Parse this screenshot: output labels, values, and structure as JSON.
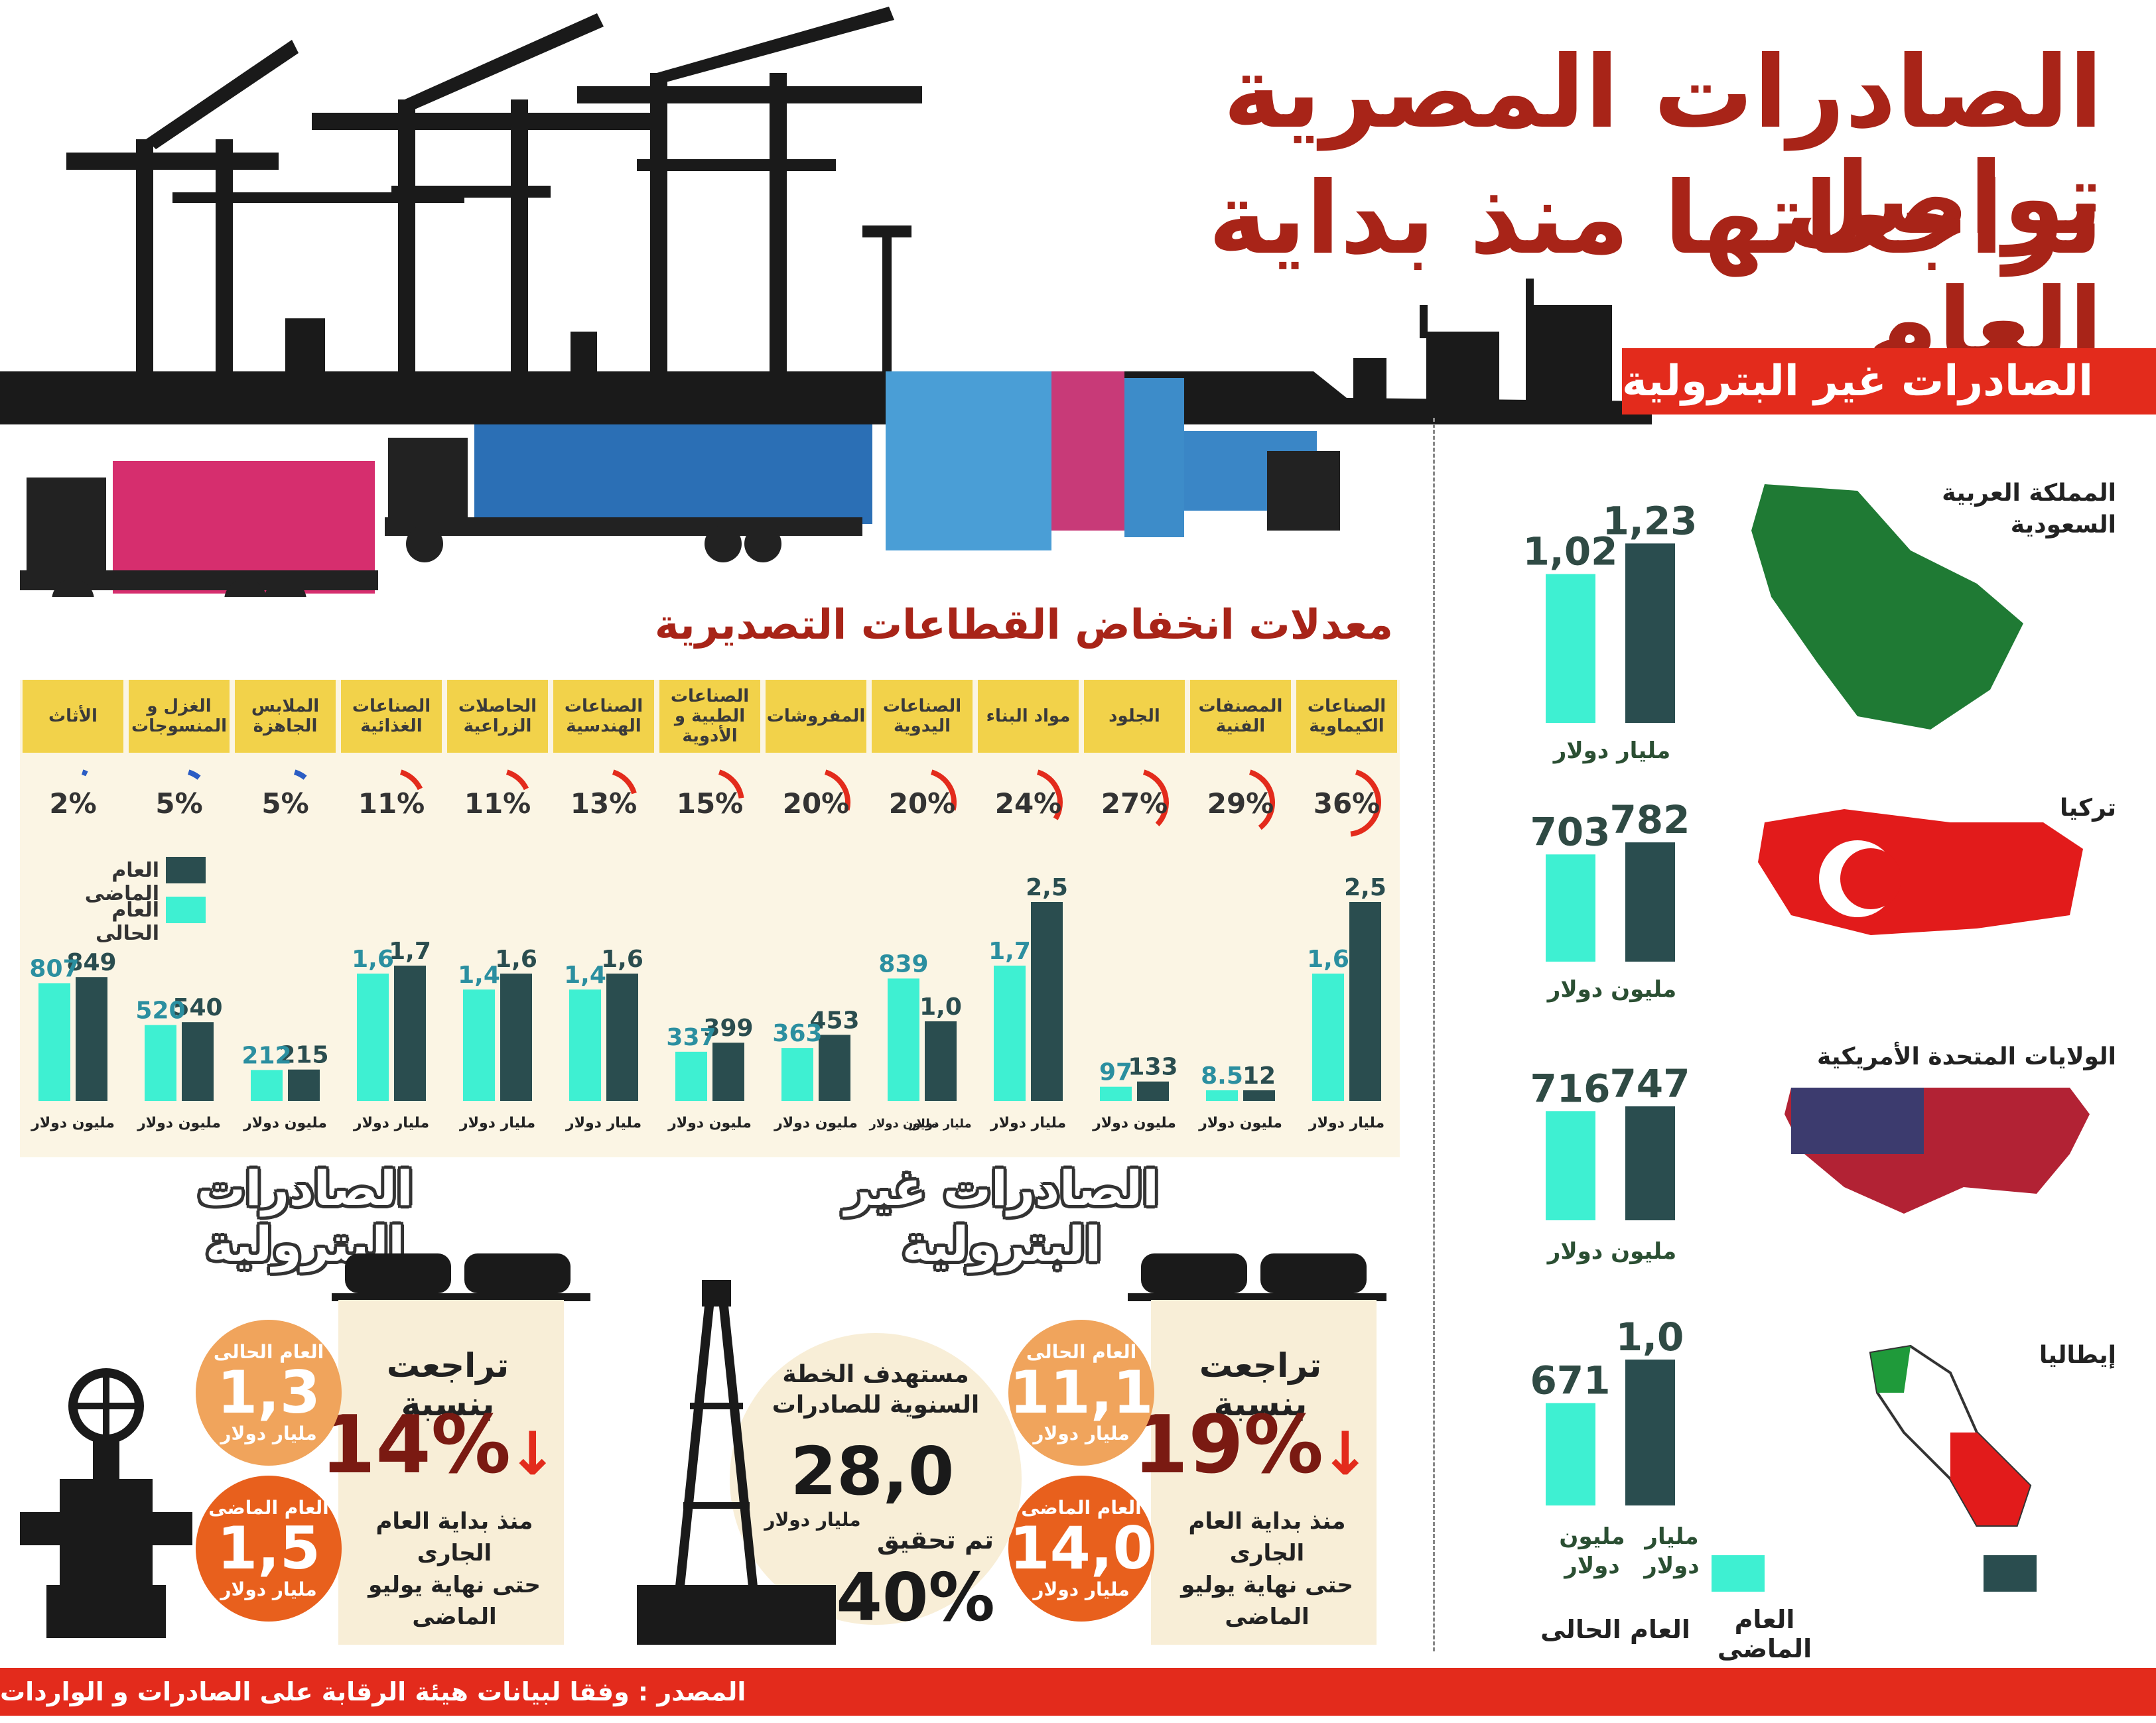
{
  "title": {
    "line1": "الصادرات المصرية تواصل",
    "line2": "تراجعاتها منذ بداية العام"
  },
  "colors": {
    "title": "#a82418",
    "red_band": "#e32b1c",
    "current": "#3ef0d2",
    "previous": "#2a4d4f",
    "header": "#f2d24a",
    "panel": "#fbf5e4"
  },
  "countries_panel": {
    "header": "الصادرات غير البترولية",
    "legend": {
      "previous": "العام الماضى",
      "current": "العام الحالى"
    },
    "items": [
      {
        "name": "المملكة العربية السعودية",
        "current_label": "1,02",
        "previous_label": "1,23",
        "unit": "مليار دولار"
      },
      {
        "name": "تركيا",
        "current_label": "703",
        "previous_label": "782",
        "unit": "مليون دولار"
      },
      {
        "name": "الولايات المتحدة الأمريكية",
        "current_label": "716",
        "previous_label": "747",
        "unit": "مليون دولار"
      },
      {
        "name": "إيطاليا",
        "current_label": "671",
        "previous_label": "1,0",
        "unit_current": "مليون دولار",
        "unit_previous": "مليار دولار"
      }
    ]
  },
  "sectors_panel": {
    "title": "معدلات انخفاض القطاعات التصديرية",
    "legend": {
      "previous": "العام الماضى",
      "current": "العام الحالى"
    },
    "sectors": [
      {
        "name": "الصناعات الكيماوية",
        "pct_label": "36%",
        "current_label": "1,6",
        "previous_label": "2,5",
        "unit": "مليار دولار"
      },
      {
        "name": "المصنفات الفنية",
        "pct_label": "29%",
        "current_label": "8.5",
        "previous_label": "12",
        "unit": "مليون دولار"
      },
      {
        "name": "الجلود",
        "pct_label": "27%",
        "current_label": "97",
        "previous_label": "133",
        "unit": "مليون دولار"
      },
      {
        "name": "مواد البناء",
        "pct_label": "24%",
        "current_label": "1,7",
        "previous_label": "2,5",
        "unit": "مليار دولار"
      },
      {
        "name": "الصناعات اليدوية",
        "pct_label": "20%",
        "current_label": "839",
        "previous_label": "1,0",
        "unit_current": "مليون دولار",
        "unit_previous": "مليار دولار"
      },
      {
        "name": "المفروشات",
        "pct_label": "20%",
        "current_label": "363",
        "previous_label": "453",
        "unit": "مليون دولار"
      },
      {
        "name": "الصناعات الطبية و الأدوية",
        "pct_label": "15%",
        "current_label": "337",
        "previous_label": "399",
        "unit": "مليون دولار"
      },
      {
        "name": "الصناعات الهندسية",
        "pct_label": "13%",
        "current_label": "1,4",
        "previous_label": "1,6",
        "unit": "مليار دولار"
      },
      {
        "name": "الحاصلات الزراعية",
        "pct_label": "11%",
        "current_label": "1,4",
        "previous_label": "1,6",
        "unit": "مليار دولار"
      },
      {
        "name": "الصناعات الغذائية",
        "pct_label": "11%",
        "current_label": "1,6",
        "previous_label": "1,7",
        "unit": "مليار دولار"
      },
      {
        "name": "الملابس الجاهزة",
        "pct_label": "5%",
        "current_label": "212",
        "previous_label": "215",
        "unit": "مليون دولار"
      },
      {
        "name": "الغزل و المنسوجات",
        "pct_label": "5%",
        "current_label": "520",
        "previous_label": "540",
        "unit": "مليون دولار"
      },
      {
        "name": "الأثاث",
        "pct_label": "2%",
        "current_label": "807",
        "previous_label": "849",
        "unit": "مليون دولار"
      }
    ]
  },
  "non_petroleum": {
    "title": "الصادرات غير البترولية",
    "decline_title": "تراجعت بنسبة",
    "decline_pct": "19%",
    "since": [
      "منذ بداية العام",
      "الجارى",
      "حتى نهاية يوليو",
      "الماضى"
    ],
    "current_label": "العام الحالى",
    "current_value": "11,1",
    "current_unit": "مليار دولار",
    "previous_label": "العام الماضى",
    "previous_value": "14,0",
    "previous_unit": "مليار دولار",
    "target_title": [
      "مستهدف الخطة",
      "السنوية للصادرات"
    ],
    "target_value": "28,0",
    "target_unit": "مليار دولار",
    "achieved_label": "تم تحقيق",
    "achieved_value": "40%"
  },
  "petroleum": {
    "title": "الصادرات البترولية",
    "decline_title": "تراجعت بنسبة",
    "decline_pct": "14%",
    "since": [
      "منذ بداية العام",
      "الجارى",
      "حتى نهاية يوليو",
      "الماضى"
    ],
    "current_label": "العام الحالى",
    "current_value": "1,3",
    "current_unit": "مليار دولار",
    "previous_label": "العام الماضى",
    "previous_value": "1,5",
    "previous_unit": "مليار دولار"
  },
  "source": "المصدر : وفقا لبيانات هيئة الرقابة على الصادرات و الواردات",
  "chart_data": [
    {
      "type": "bar",
      "title": "معدلات انخفاض القطاعات التصديرية",
      "categories": [
        "الصناعات الكيماوية",
        "المصنفات الفنية",
        "الجلود",
        "مواد البناء",
        "الصناعات اليدوية",
        "المفروشات",
        "الصناعات الطبية و الأدوية",
        "الصناعات الهندسية",
        "الحاصلات الزراعية",
        "الصناعات الغذائية",
        "الملابس الجاهزة",
        "الغزل و المنسوجات",
        "الأثاث"
      ],
      "decline_percent": [
        36,
        29,
        27,
        24,
        20,
        20,
        15,
        13,
        11,
        11,
        5,
        5,
        2
      ],
      "series": [
        {
          "name": "العام الماضى",
          "values": [
            2.5,
            12,
            133,
            2.5,
            1.0,
            453,
            399,
            1.6,
            1.6,
            1.7,
            215,
            540,
            849
          ]
        },
        {
          "name": "العام الحالى",
          "values": [
            1.6,
            8.5,
            97,
            1.7,
            839,
            363,
            337,
            1.4,
            1.4,
            1.6,
            212,
            520,
            807
          ]
        }
      ]
    },
    {
      "type": "bar",
      "title": "الصادرات غير البترولية",
      "categories": [
        "المملكة العربية السعودية",
        "تركيا",
        "الولايات المتحدة الأمريكية",
        "إيطاليا"
      ],
      "series": [
        {
          "name": "العام الماضى",
          "values": [
            1.23,
            782,
            747,
            1.0
          ]
        },
        {
          "name": "العام الحالى",
          "values": [
            1.02,
            703,
            716,
            671
          ]
        }
      ]
    }
  ]
}
